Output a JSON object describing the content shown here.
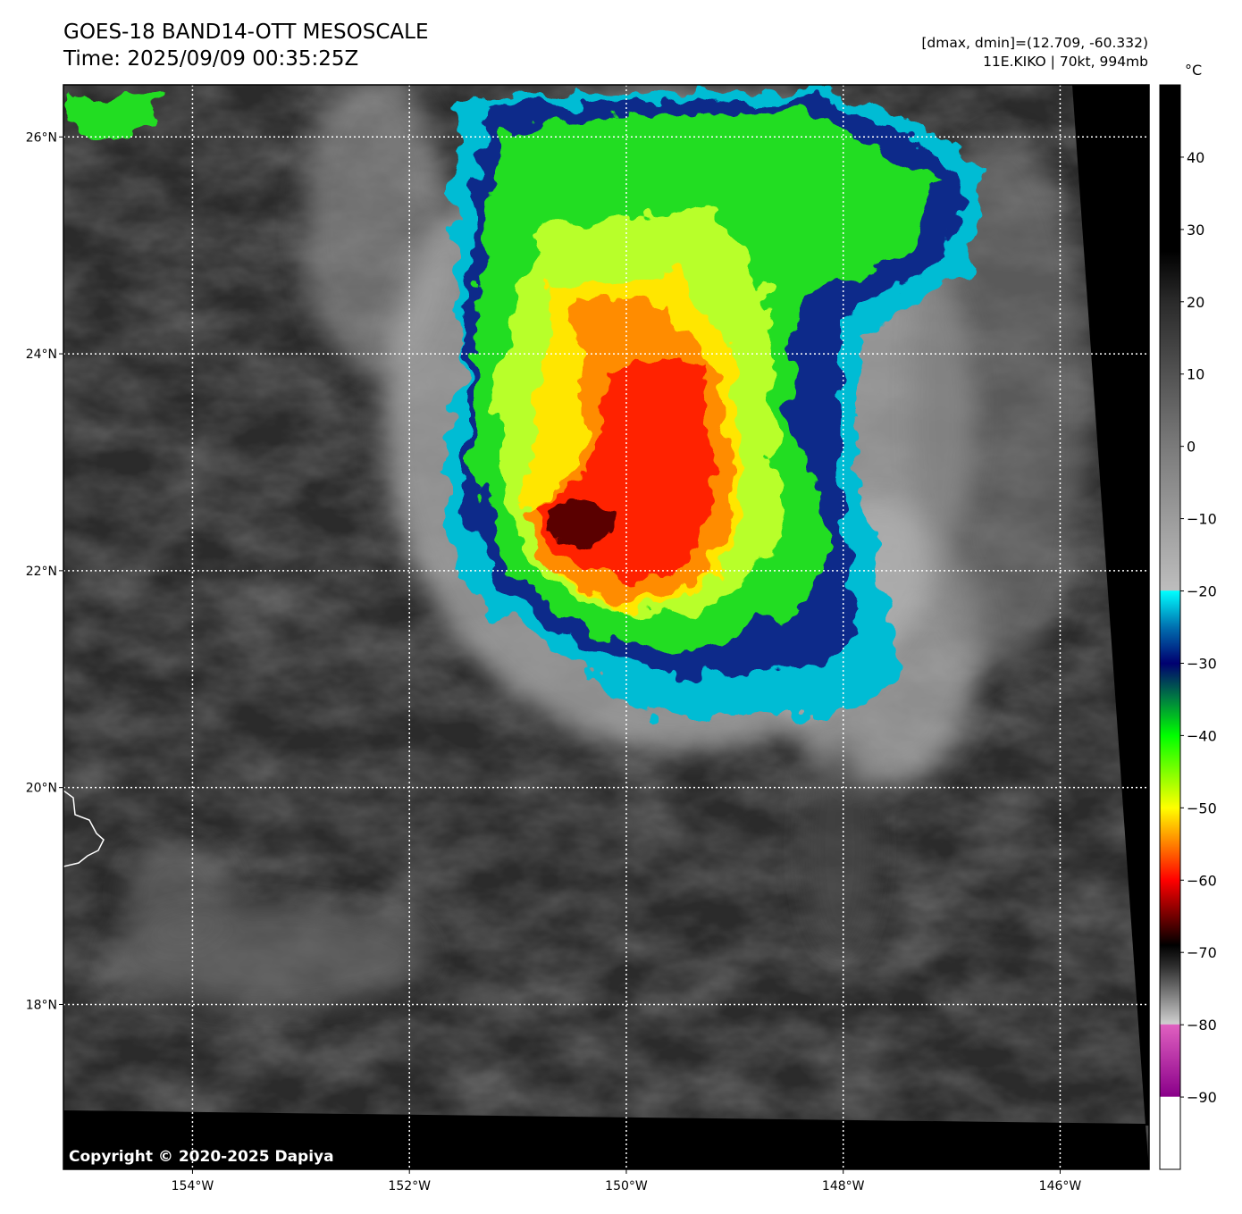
{
  "header": {
    "title": "GOES-18 BAND14-OTT MESOSCALE",
    "time": "Time: 2025/09/09 00:35:25Z",
    "dmax_dmin": "[dmax, dmin]=(12.709, -60.332)",
    "storm": "11E.KIKO | 70kt, 994mb"
  },
  "map": {
    "lon_range": [
      -155.19,
      -145.18
    ],
    "lat_range": [
      16.48,
      26.48
    ],
    "lon_ticks": [
      {
        "value": -154,
        "label": "154°W"
      },
      {
        "value": -152,
        "label": "152°W"
      },
      {
        "value": -150,
        "label": "150°W"
      },
      {
        "value": -148,
        "label": "148°W"
      },
      {
        "value": -146,
        "label": "146°W"
      }
    ],
    "lat_ticks": [
      {
        "value": 26,
        "label": "26°N"
      },
      {
        "value": 24,
        "label": "24°N"
      },
      {
        "value": 22,
        "label": "22°N"
      },
      {
        "value": 20,
        "label": "20°N"
      },
      {
        "value": 18,
        "label": "18°N"
      }
    ],
    "copyright": "Copyright © 2020-2025 Dapiya"
  },
  "colorbar": {
    "unit": "°C",
    "range": [
      -100,
      50
    ],
    "ticks": [
      {
        "value": 40,
        "label": "40"
      },
      {
        "value": 30,
        "label": "30"
      },
      {
        "value": 20,
        "label": "20"
      },
      {
        "value": 10,
        "label": "10"
      },
      {
        "value": 0,
        "label": "0"
      },
      {
        "value": -10,
        "label": "−10"
      },
      {
        "value": -20,
        "label": "−20"
      },
      {
        "value": -30,
        "label": "−30"
      },
      {
        "value": -40,
        "label": "−40"
      },
      {
        "value": -50,
        "label": "−50"
      },
      {
        "value": -60,
        "label": "−60"
      },
      {
        "value": -70,
        "label": "−70"
      },
      {
        "value": -80,
        "label": "−80"
      },
      {
        "value": -90,
        "label": "−90"
      }
    ],
    "stops": [
      {
        "value": 50,
        "color": "#000000"
      },
      {
        "value": 27,
        "color": "#000000"
      },
      {
        "value": 20,
        "color": "#2a2a2a"
      },
      {
        "value": 0,
        "color": "#7a7a7a"
      },
      {
        "value": -19.9,
        "color": "#bdbdbd"
      },
      {
        "value": -20,
        "color": "#00ffff"
      },
      {
        "value": -25,
        "color": "#0070b0"
      },
      {
        "value": -30,
        "color": "#000070"
      },
      {
        "value": -35,
        "color": "#008040"
      },
      {
        "value": -40,
        "color": "#00ff00"
      },
      {
        "value": -50,
        "color": "#ffff00"
      },
      {
        "value": -55,
        "color": "#ff8000"
      },
      {
        "value": -60,
        "color": "#ff0000"
      },
      {
        "value": -69,
        "color": "#000000"
      },
      {
        "value": -72,
        "color": "#303030"
      },
      {
        "value": -79.9,
        "color": "#d0d0d0"
      },
      {
        "value": -80,
        "color": "#e060c0"
      },
      {
        "value": -89.9,
        "color": "#8a008a"
      },
      {
        "value": -90,
        "color": "#ffffff"
      },
      {
        "value": -100,
        "color": "#ffffff"
      }
    ]
  }
}
